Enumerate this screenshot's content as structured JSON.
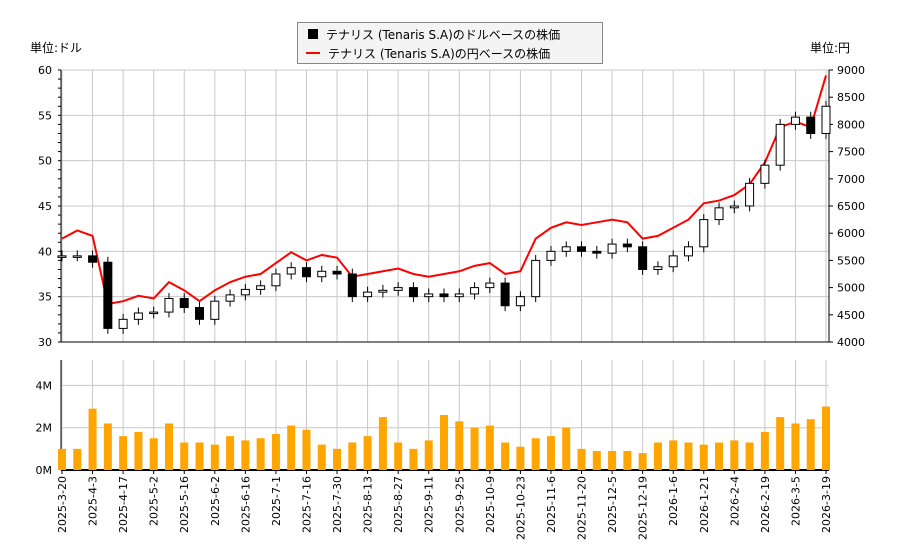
{
  "legend": {
    "usd_label": "テナリス (Tenaris S.A)のドルベースの株価",
    "jpy_label": "テナリス (Tenaris S.A)の円ベースの株価"
  },
  "units": {
    "left": "単位:ドル",
    "right": "単位:円"
  },
  "colors": {
    "candle": "#000000",
    "jpy_line": "#ff0000",
    "volume": "#ffa500",
    "grid": "#c8c8c8"
  },
  "chart_data": [
    {
      "type": "candlestick+line",
      "yaxis_left": {
        "range": [
          30,
          60
        ],
        "ticks": [
          30,
          35,
          40,
          45,
          50,
          55,
          60
        ]
      },
      "yaxis_right": {
        "range": [
          4000,
          9000
        ],
        "ticks": [
          4000,
          4500,
          5000,
          5500,
          6000,
          6500,
          7000,
          7500,
          8000,
          8500,
          9000
        ]
      },
      "grid": true,
      "x_labels": [
        "2025-3-20",
        "2025-4-3",
        "2025-4-17",
        "2025-5-2",
        "2025-5-16",
        "2025-6-2",
        "2025-6-16",
        "2025-7-1",
        "2025-7-16",
        "2025-7-30",
        "2025-8-13",
        "2025-8-27",
        "2025-9-11",
        "2025-9-25",
        "2025-10-9",
        "2025-10-23",
        "2025-11-6",
        "2025-11-20",
        "2025-12-5",
        "2025-12-19",
        "2026-1-6",
        "2026-1-21",
        "2026-2-4",
        "2026-2-19",
        "2026-3-5",
        "2026-3-19"
      ],
      "usd_close": [
        39.5,
        39.5,
        38.8,
        31.5,
        32.5,
        33.2,
        33.3,
        34.8,
        33.8,
        32.5,
        34.5,
        35.2,
        35.8,
        36.2,
        37.5,
        38.2,
        37.2,
        37.8,
        37.5,
        35.0,
        35.5,
        35.7,
        36.0,
        35.0,
        35.3,
        35.0,
        35.3,
        36.0,
        36.5,
        34.0,
        35.0,
        39.0,
        40.0,
        40.5,
        40.0,
        39.8,
        40.8,
        40.5,
        38.0,
        38.3,
        39.5,
        40.5,
        43.5,
        44.8,
        45.0,
        47.5,
        49.5,
        54.0,
        54.8,
        53.0,
        56.0
      ],
      "jpy_close": [
        5900,
        6050,
        5950,
        4700,
        4750,
        4850,
        4800,
        5100,
        4950,
        4750,
        4950,
        5100,
        5200,
        5250,
        5450,
        5650,
        5500,
        5600,
        5550,
        5200,
        5250,
        5300,
        5350,
        5250,
        5200,
        5250,
        5300,
        5400,
        5450,
        5250,
        5300,
        5900,
        6100,
        6200,
        6150,
        6200,
        6250,
        6200,
        5900,
        5950,
        6100,
        6250,
        6550,
        6600,
        6700,
        6900,
        7300,
        7950,
        8050,
        7950,
        8900
      ]
    },
    {
      "type": "bar",
      "yaxis": {
        "range": [
          0,
          5.2
        ],
        "ticks": [
          "0M",
          "2M",
          "4M"
        ]
      },
      "volume_millions": [
        1.0,
        1.0,
        2.9,
        2.2,
        1.6,
        1.8,
        1.5,
        2.2,
        1.3,
        1.3,
        1.2,
        1.6,
        1.4,
        1.5,
        1.7,
        2.1,
        1.9,
        1.2,
        1.0,
        1.3,
        1.6,
        2.5,
        1.3,
        1.0,
        1.4,
        2.6,
        2.3,
        2.0,
        2.1,
        1.3,
        1.1,
        1.5,
        1.6,
        2.0,
        1.0,
        0.9,
        0.9,
        0.9,
        0.8,
        1.3,
        1.4,
        1.3,
        1.2,
        1.3,
        1.4,
        1.3,
        1.8,
        2.5,
        2.2,
        2.4,
        3.0
      ]
    }
  ]
}
